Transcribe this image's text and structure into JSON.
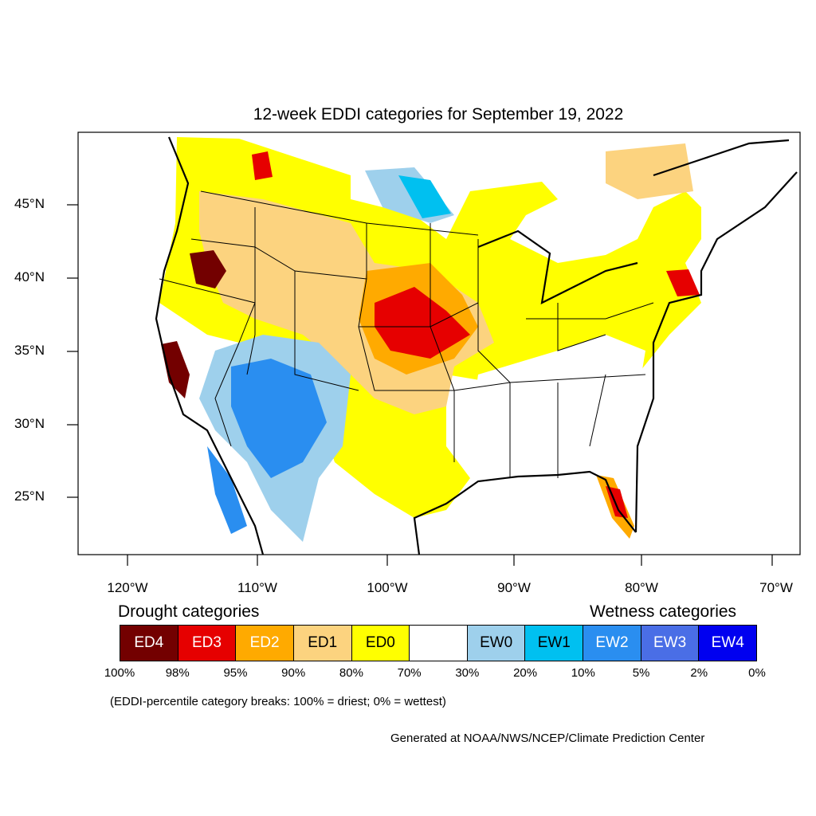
{
  "title": "12-week EDDI categories for September 19, 2022",
  "latitude_labels": [
    "45°N",
    "40°N",
    "35°N",
    "30°N",
    "25°N"
  ],
  "longitude_labels": [
    "120°W",
    "110°W",
    "100°W",
    "90°W",
    "80°W",
    "70°W"
  ],
  "legend": {
    "drought_heading": "Drought categories",
    "wetness_heading": "Wetness categories",
    "categories": [
      {
        "label": "ED4",
        "color": "#730000",
        "text_color": "#ffffff"
      },
      {
        "label": "ED3",
        "color": "#e60000",
        "text_color": "#ffffff"
      },
      {
        "label": "ED2",
        "color": "#ffaa00",
        "text_color": "#ffffff"
      },
      {
        "label": "ED1",
        "color": "#fcd37f",
        "text_color": "#000000"
      },
      {
        "label": "ED0",
        "color": "#ffff00",
        "text_color": "#000000"
      },
      {
        "label": "",
        "color": "#ffffff",
        "text_color": "#000000"
      },
      {
        "label": "EW0",
        "color": "#9ed0ec",
        "text_color": "#000000"
      },
      {
        "label": "EW1",
        "color": "#00c0f0",
        "text_color": "#000000"
      },
      {
        "label": "EW2",
        "color": "#2a8ef0",
        "text_color": "#ffffff"
      },
      {
        "label": "EW3",
        "color": "#4a6ee6",
        "text_color": "#ffffff"
      },
      {
        "label": "EW4",
        "color": "#0000f0",
        "text_color": "#ffffff"
      }
    ],
    "percentiles": [
      "100%",
      "98%",
      "95%",
      "90%",
      "80%",
      "70%",
      "30%",
      "20%",
      "10%",
      "5%",
      "2%",
      "0%"
    ]
  },
  "breaks_note": "(EDDI-percentile category breaks: 100% = driest; 0% = wettest)",
  "credit": "Generated at NOAA/NWS/NCEP/Climate Prediction Center"
}
